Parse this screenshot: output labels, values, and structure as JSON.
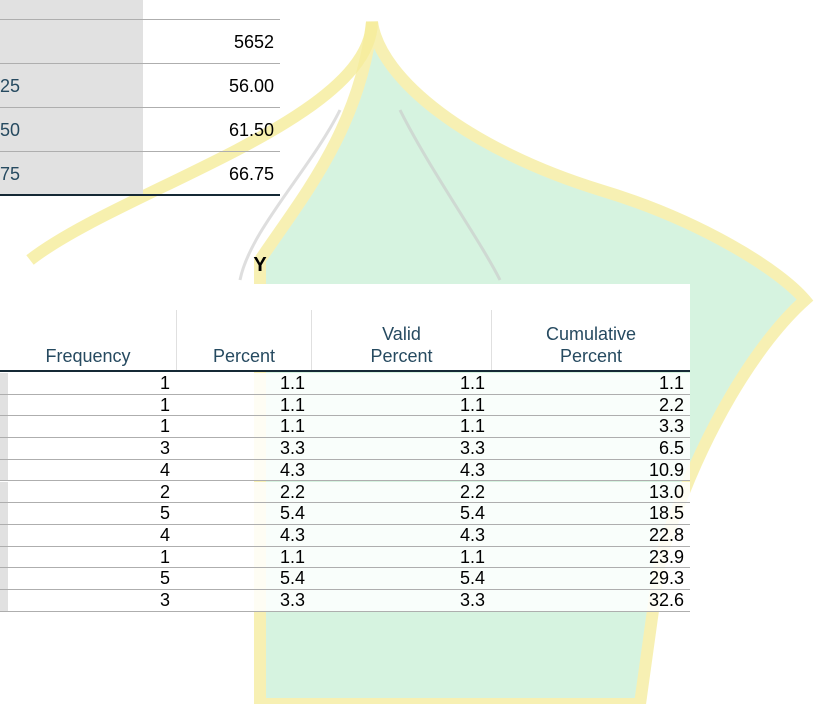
{
  "stats_table": {
    "rows": [
      {
        "label": "",
        "value": "5652"
      },
      {
        "label": "25",
        "value": "56.00"
      },
      {
        "label": "50",
        "value": "61.50"
      },
      {
        "label": "75",
        "value": "66.75"
      }
    ]
  },
  "frequency_table": {
    "title": "Y",
    "headers": [
      "Frequency",
      "Percent",
      "Valid Percent",
      "Cumulative Percent"
    ],
    "rows": [
      [
        "1",
        "1.1",
        "1.1",
        "1.1"
      ],
      [
        "1",
        "1.1",
        "1.1",
        "2.2"
      ],
      [
        "1",
        "1.1",
        "1.1",
        "3.3"
      ],
      [
        "3",
        "3.3",
        "3.3",
        "6.5"
      ],
      [
        "4",
        "4.3",
        "4.3",
        "10.9"
      ],
      [
        "2",
        "2.2",
        "2.2",
        "13.0"
      ],
      [
        "5",
        "5.4",
        "5.4",
        "18.5"
      ],
      [
        "4",
        "4.3",
        "4.3",
        "22.8"
      ],
      [
        "1",
        "1.1",
        "1.1",
        "23.9"
      ],
      [
        "5",
        "5.4",
        "5.4",
        "29.3"
      ],
      [
        "3",
        "3.3",
        "3.3",
        "32.6"
      ]
    ]
  }
}
